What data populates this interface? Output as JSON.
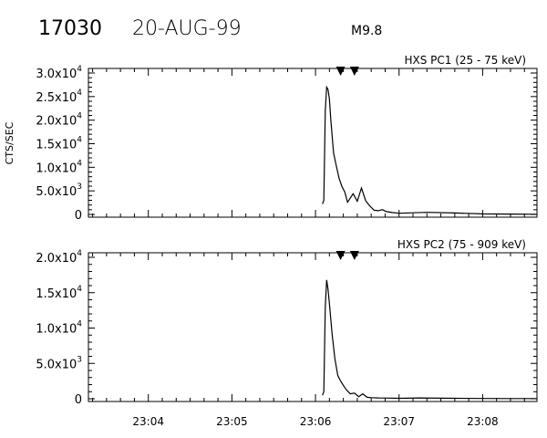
{
  "header": {
    "event_id": "17030",
    "date": "20-AUG-99",
    "flare_class": "M9.8"
  },
  "chart_data": [
    {
      "type": "line",
      "title": "HXS PC1 (25 - 75 keV)",
      "ylabel": "CTS/SEC",
      "xlabel": "",
      "x_tick_labels": [
        "23:04",
        "23:05",
        "23:06",
        "23:07",
        "23:08"
      ],
      "xlim": [
        "23:03:17",
        "23:08:39"
      ],
      "ylim": [
        0,
        30000
      ],
      "y_ticks": [
        {
          "mantissa": "0",
          "exponent": ""
        },
        {
          "mantissa": "5.0x10",
          "exponent": "3"
        },
        {
          "mantissa": "1.0x10",
          "exponent": "4"
        },
        {
          "mantissa": "1.5x10",
          "exponent": "4"
        },
        {
          "mantissa": "2.0x10",
          "exponent": "4"
        },
        {
          "mantissa": "2.5x10",
          "exponent": "4"
        },
        {
          "mantissa": "3.0x10",
          "exponent": "4"
        }
      ],
      "y_tick_values": [
        0,
        5000,
        10000,
        15000,
        20000,
        25000,
        30000
      ],
      "markers": [
        "23:06:18",
        "23:06:28"
      ],
      "series": [
        {
          "x": [
            "23:06:05",
            "23:06:06",
            "23:06:07",
            "23:06:08",
            "23:06:09",
            "23:06:10",
            "23:06:11",
            "23:06:13",
            "23:06:15",
            "23:06:17",
            "23:06:19",
            "23:06:21",
            "23:06:23",
            "23:06:25",
            "23:06:27",
            "23:06:30",
            "23:06:33",
            "23:06:36",
            "23:06:39",
            "23:06:42",
            "23:06:45",
            "23:06:48",
            "23:06:51",
            "23:06:55",
            "23:07:00",
            "23:07:10",
            "23:07:20",
            "23:07:40",
            "23:08:00",
            "23:08:20",
            "23:08:39"
          ],
          "values": [
            2200,
            3000,
            22000,
            27000,
            26500,
            24500,
            20000,
            13000,
            10200,
            7600,
            5900,
            4800,
            2600,
            3500,
            4400,
            2800,
            5600,
            2900,
            1800,
            900,
            800,
            1000,
            600,
            400,
            250,
            350,
            450,
            300,
            120,
            70,
            30
          ]
        }
      ]
    },
    {
      "type": "line",
      "title": "HXS PC2 (75 - 909 keV)",
      "ylabel": "",
      "xlabel": "",
      "x_tick_labels": [
        "23:04",
        "23:05",
        "23:06",
        "23:07",
        "23:08"
      ],
      "xlim": [
        "23:03:17",
        "23:08:39"
      ],
      "ylim": [
        0,
        20000
      ],
      "y_ticks": [
        {
          "mantissa": "0",
          "exponent": ""
        },
        {
          "mantissa": "5.0x10",
          "exponent": "3"
        },
        {
          "mantissa": "1.0x10",
          "exponent": "4"
        },
        {
          "mantissa": "1.5x10",
          "exponent": "4"
        },
        {
          "mantissa": "2.0x10",
          "exponent": "4"
        }
      ],
      "y_tick_values": [
        0,
        5000,
        10000,
        15000,
        20000
      ],
      "markers": [
        "23:06:18",
        "23:06:28"
      ],
      "series": [
        {
          "x": [
            "23:06:05",
            "23:06:06",
            "23:06:07",
            "23:06:08",
            "23:06:09",
            "23:06:10",
            "23:06:12",
            "23:06:14",
            "23:06:16",
            "23:06:18",
            "23:06:20",
            "23:06:22",
            "23:06:25",
            "23:06:28",
            "23:06:31",
            "23:06:34",
            "23:06:37",
            "23:06:40",
            "23:06:45",
            "23:06:50",
            "23:07:00",
            "23:07:15",
            "23:07:40",
            "23:08:00",
            "23:08:20",
            "23:08:39"
          ],
          "values": [
            500,
            1000,
            13000,
            16800,
            15500,
            13500,
            9000,
            5600,
            3300,
            2500,
            1900,
            1300,
            700,
            800,
            300,
            700,
            200,
            150,
            120,
            100,
            60,
            120,
            60,
            40,
            30,
            20
          ]
        }
      ]
    }
  ]
}
